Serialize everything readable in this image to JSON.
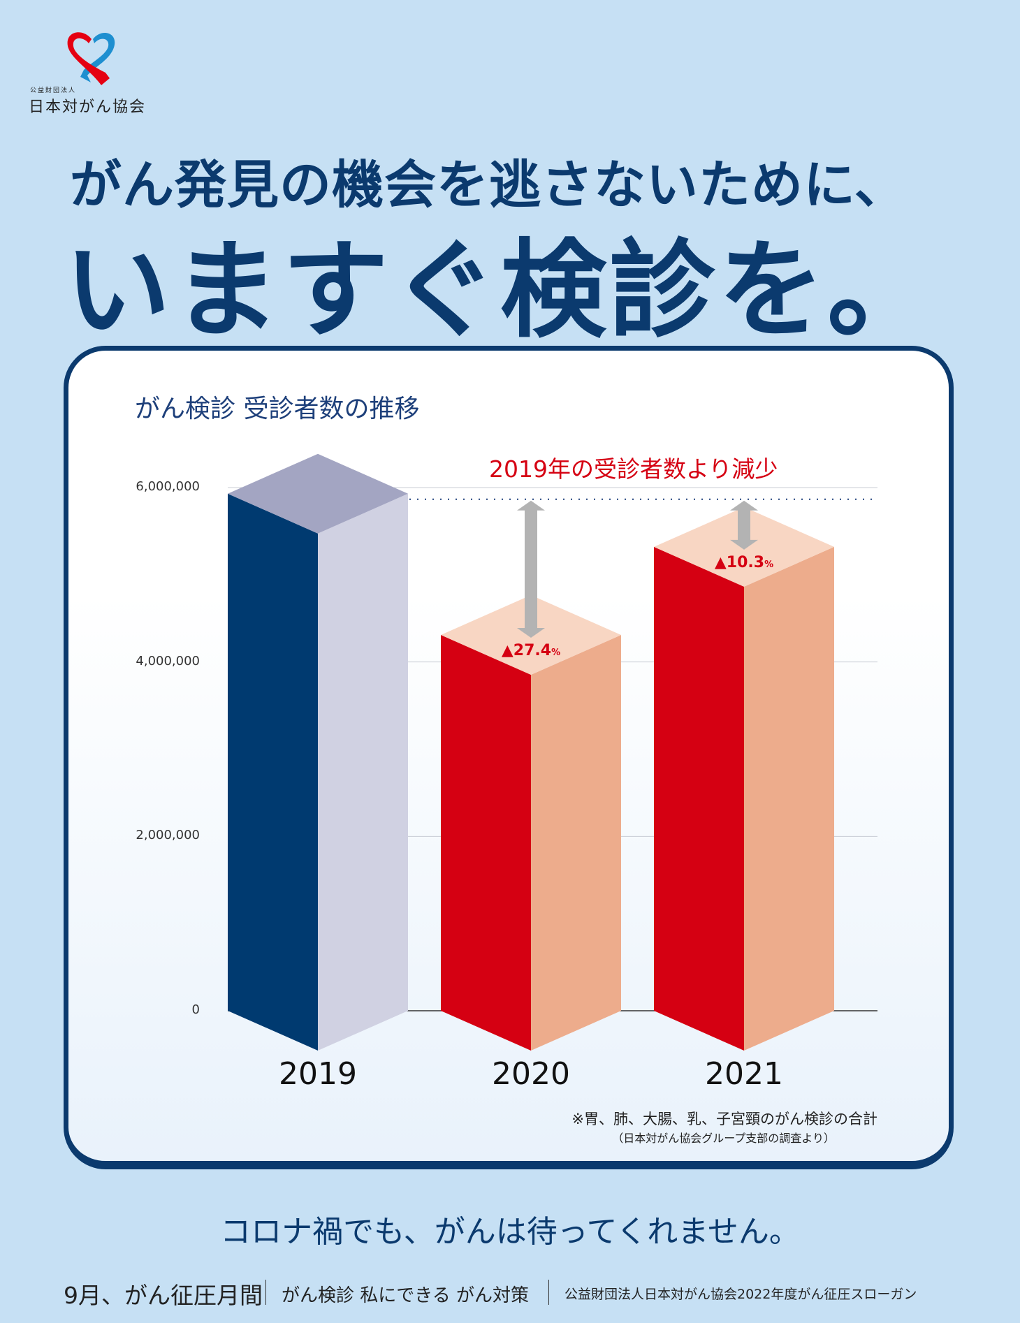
{
  "logo": {
    "org_type": "公益財団法人",
    "org_name": "日本対がん協会"
  },
  "headline": {
    "line1": "がん発見の機会を逃さないために、",
    "line2": "いますぐ検診を。"
  },
  "chart_data": {
    "type": "bar",
    "title": "がん検診 受診者数の推移",
    "categories": [
      "2019",
      "2020",
      "2021"
    ],
    "values": [
      5930000,
      4310000,
      5320000
    ],
    "data_labels": [
      "",
      "▲27.4",
      "▲10.3"
    ],
    "data_label_unit": "%",
    "annotation": "2019年の受診者数より減少",
    "ylim": [
      0,
      6000000
    ],
    "yticks": [
      {
        "value": 0,
        "label": "0"
      },
      {
        "value": 2000000,
        "label": "2,000,000"
      },
      {
        "value": 4000000,
        "label": "4,000,000"
      },
      {
        "value": 6000000,
        "label": "6,000,000"
      }
    ],
    "grid": true,
    "colors": {
      "2019_front": "#003a70",
      "2019_side": "#d0d1e2",
      "2019_top": "#a3a5c2",
      "front": "#d50012",
      "side": "#edac8c",
      "top": "#f8d6c3",
      "arrow": "#b3b3b3"
    }
  },
  "notes": {
    "line1": "※胃、肺、大腸、乳、子宮頸のがん検診の合計",
    "line2": "（日本対がん協会グループ支部の調査より）"
  },
  "slogan": "コロナ禍でも、がんは待ってくれません。",
  "footer": {
    "month": "9月、がん征圧月間",
    "motto": "がん検診 私にできる がん対策",
    "credit": "公益財団法人日本対がん協会2022年度がん征圧スローガン"
  }
}
